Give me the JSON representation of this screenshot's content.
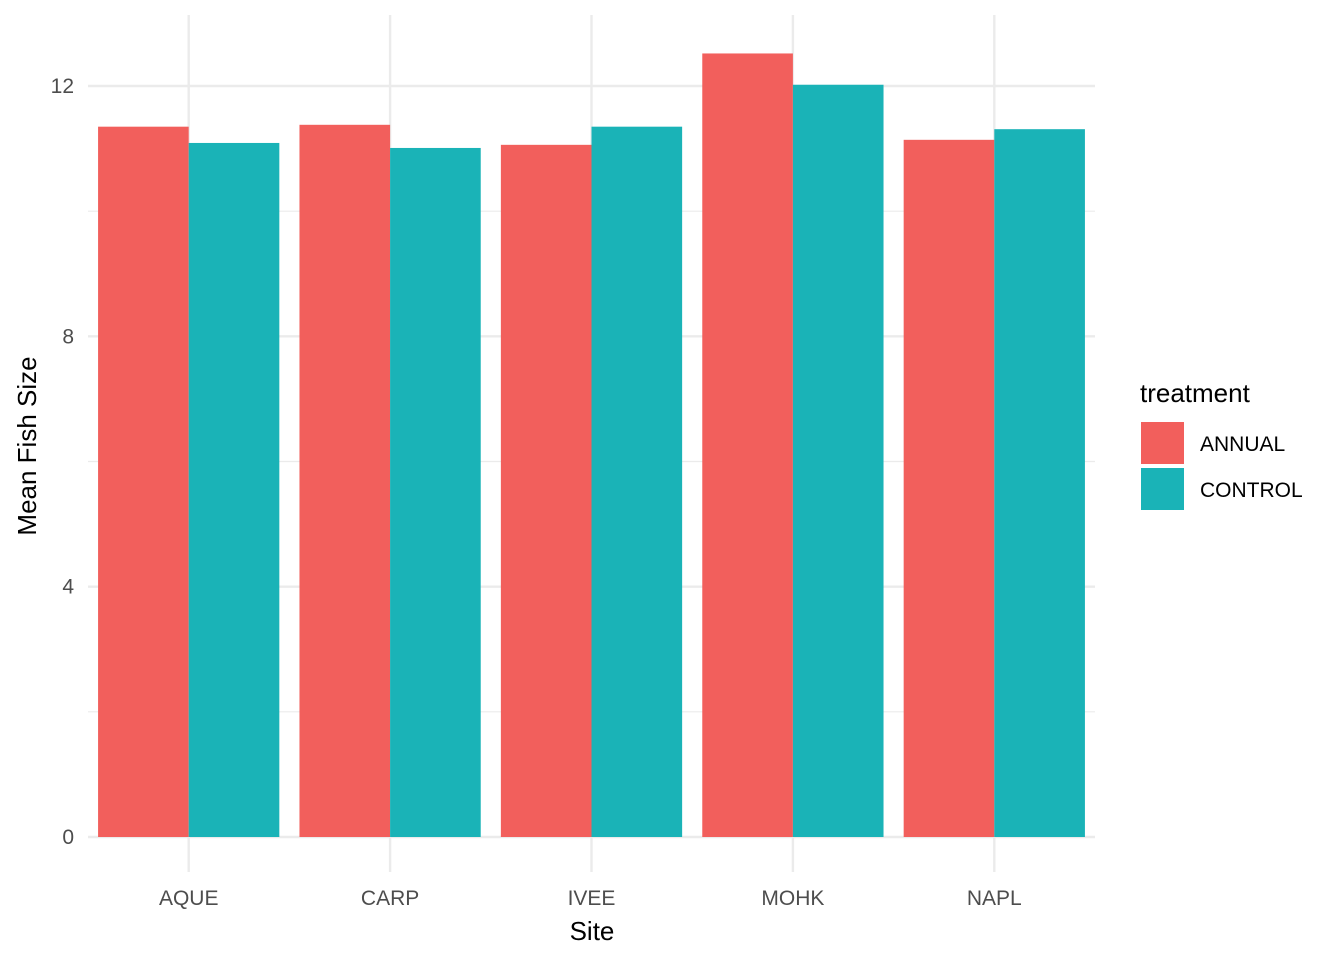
{
  "chart_data": {
    "type": "bar",
    "title": "",
    "xlabel": "Site",
    "ylabel": "Mean Fish Size",
    "categories": [
      "AQUE",
      "CARP",
      "IVEE",
      "MOHK",
      "NAPL"
    ],
    "series": [
      {
        "name": "ANNUAL",
        "color": "#F25F5C",
        "values": [
          11.35,
          11.38,
          11.06,
          12.52,
          11.14
        ]
      },
      {
        "name": "CONTROL",
        "color": "#1AB3B7",
        "values": [
          11.09,
          11.01,
          11.35,
          12.02,
          11.31
        ]
      }
    ],
    "ylim": [
      0,
      13.0
    ],
    "yticks": [
      0,
      4,
      8,
      12
    ],
    "ytick_labels": [
      "0",
      "4",
      "8",
      "12"
    ],
    "legend": {
      "title": "treatment",
      "position": "right"
    },
    "grid": true
  }
}
